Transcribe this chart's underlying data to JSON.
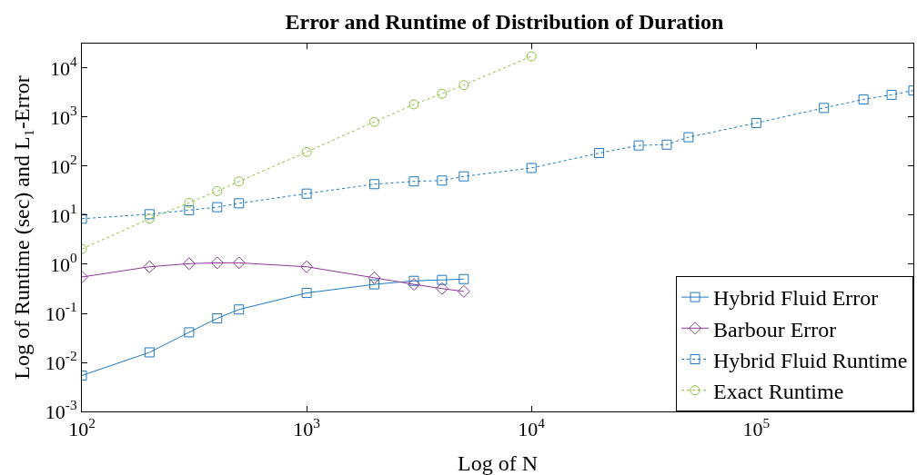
{
  "chart_data": {
    "type": "line",
    "title": "Error and Runtime of Distribution of Duration",
    "xlabel": "Log of N",
    "ylabel": "Log of Runtime (sec) and L₁-Error",
    "log": "xy",
    "grid": false,
    "legend": "bottom right",
    "x": [
      100,
      200,
      300,
      400,
      500,
      1000,
      2000,
      3000,
      4000,
      5000,
      10000,
      20000,
      30000,
      40000,
      50000,
      100000,
      200000,
      300000,
      400000,
      500000
    ],
    "xlim": [
      100,
      500000
    ],
    "ylim": [
      0.001,
      31600
    ],
    "xticks": [
      {
        "value": 100,
        "label": "10$^{2}$"
      },
      {
        "value": 1000,
        "label": "10$^{3}$"
      },
      {
        "value": 10000,
        "label": "10$^{4}$"
      },
      {
        "value": 100000,
        "label": "10$^{5}$"
      }
    ],
    "yticks": [
      {
        "value": 0.001,
        "label": "10$^{-3}$"
      },
      {
        "value": 0.01,
        "label": "10$^{-2}$"
      },
      {
        "value": 0.1,
        "label": "10$^{-1}$"
      },
      {
        "value": 1,
        "label": "10$^{0}$"
      },
      {
        "value": 10,
        "label": "10$^{1}$"
      },
      {
        "value": 100,
        "label": "10$^{2}$"
      },
      {
        "value": 1000,
        "label": "10$^{3}$"
      },
      {
        "value": 10000,
        "label": "10$^{4}$"
      }
    ],
    "series": [
      {
        "name": "Hybrid Fluid Error",
        "color": "#1f78c1",
        "marker": "square",
        "line_style": "solid",
        "values": [
          0.0054,
          0.016,
          0.041,
          0.079,
          0.12,
          0.26,
          0.39,
          0.46,
          0.48,
          0.5,
          null,
          null,
          null,
          null,
          null,
          null,
          null,
          null,
          null,
          null
        ]
      },
      {
        "name": "Barbour Error",
        "color": "#8b3a96",
        "marker": "diamond",
        "line_style": "solid",
        "values": [
          0.55,
          0.89,
          1.03,
          1.07,
          1.07,
          0.89,
          0.53,
          0.39,
          0.32,
          0.28,
          null,
          null,
          null,
          null,
          null,
          null,
          null,
          null,
          null,
          null
        ]
      },
      {
        "name": "Hybrid Fluid Runtime",
        "color": "#1f78c1",
        "marker": "square",
        "line_style": "dotted",
        "values": [
          8.5,
          10.5,
          12.7,
          14.6,
          17.5,
          27.6,
          43,
          49,
          51,
          62,
          92,
          185,
          265,
          275,
          390,
          760,
          1540,
          2300,
          2850,
          3500
        ]
      },
      {
        "name": "Exact Runtime",
        "color": "#8cbf3f",
        "marker": "circle",
        "line_style": "dotted",
        "x": [
          100,
          200,
          300,
          400,
          500,
          1000,
          2000,
          3000,
          4000,
          5000,
          10000
        ],
        "values": [
          2.05,
          8.5,
          18,
          31,
          49,
          195,
          800,
          1820,
          3000,
          4500,
          17400
        ]
      }
    ]
  }
}
